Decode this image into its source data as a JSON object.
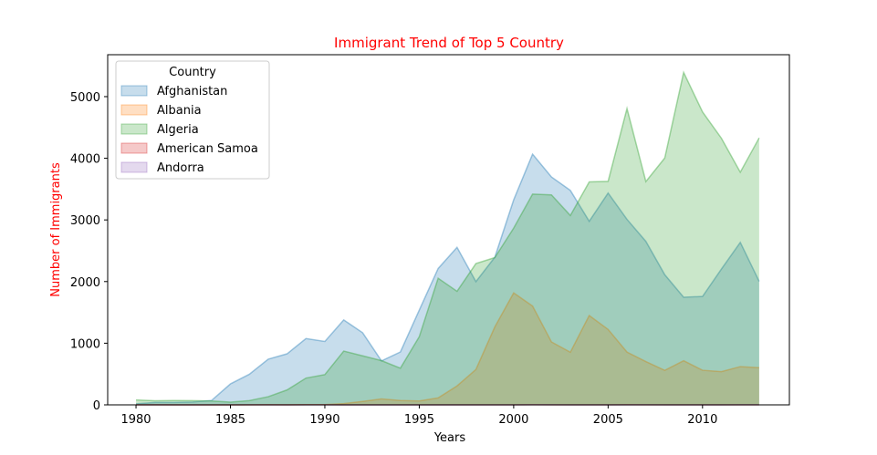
{
  "chart_data": {
    "type": "area",
    "title": "Immigrant Trend of Top 5 Country",
    "title_color": "#ff0000",
    "xlabel": "Years",
    "ylabel": "Number of Immigrants",
    "ylabel_color": "#ff0000",
    "xlim": [
      1978.5,
      2014.6
    ],
    "ylim": [
      0,
      5680
    ],
    "xticks": [
      1980,
      1985,
      1990,
      1995,
      2000,
      2005,
      2010
    ],
    "yticks": [
      0,
      1000,
      2000,
      3000,
      4000,
      5000
    ],
    "grid": false,
    "stacked": false,
    "alpha": 0.25,
    "legend": {
      "title": "Country",
      "position": "top-left"
    },
    "x": [
      1980,
      1981,
      1982,
      1983,
      1984,
      1985,
      1986,
      1987,
      1988,
      1989,
      1990,
      1991,
      1992,
      1993,
      1994,
      1995,
      1996,
      1997,
      1998,
      1999,
      2000,
      2001,
      2002,
      2003,
      2004,
      2005,
      2006,
      2007,
      2008,
      2009,
      2010,
      2011,
      2012,
      2013
    ],
    "series": [
      {
        "name": "Afghanistan",
        "color": "#1f77b4",
        "values": [
          16,
          39,
          39,
          47,
          71,
          340,
          496,
          741,
          828,
          1076,
          1028,
          1378,
          1170,
          713,
          858,
          1537,
          2212,
          2555,
          1999,
          2395,
          3326,
          4067,
          3697,
          3479,
          2978,
          3436,
          3009,
          2652,
          2111,
          1746,
          1758,
          2203,
          2635,
          2004
        ]
      },
      {
        "name": "Albania",
        "color": "#ff7f0e",
        "values": [
          1,
          0,
          0,
          0,
          0,
          0,
          1,
          2,
          2,
          3,
          3,
          21,
          56,
          96,
          71,
          63,
          113,
          307,
          574,
          1264,
          1816,
          1602,
          1021,
          853,
          1450,
          1223,
          856,
          702,
          560,
          716,
          561,
          539,
          620,
          603
        ]
      },
      {
        "name": "Algeria",
        "color": "#2ca02c",
        "values": [
          80,
          67,
          71,
          69,
          63,
          44,
          69,
          132,
          242,
          434,
          491,
          872,
          795,
          717,
          595,
          1106,
          2054,
          1842,
          2292,
          2389,
          2867,
          3418,
          3406,
          3072,
          3616,
          3626,
          4807,
          3623,
          4005,
          5393,
          4752,
          4325,
          3774,
          4331
        ]
      },
      {
        "name": "American Samoa",
        "color": "#d62728",
        "values": [
          0,
          1,
          0,
          0,
          0,
          0,
          0,
          1,
          0,
          1,
          2,
          0,
          0,
          0,
          0,
          0,
          0,
          0,
          0,
          0,
          0,
          1,
          0,
          0,
          0,
          0,
          1,
          0,
          0,
          0,
          0,
          0,
          0,
          0
        ]
      },
      {
        "name": "Andorra",
        "color": "#9467bd",
        "values": [
          0,
          0,
          0,
          0,
          0,
          0,
          2,
          0,
          0,
          0,
          0,
          0,
          0,
          0,
          0,
          0,
          0,
          0,
          0,
          0,
          0,
          1,
          1,
          0,
          0,
          0,
          0,
          1,
          0,
          0,
          0,
          0,
          1,
          1
        ]
      }
    ]
  }
}
